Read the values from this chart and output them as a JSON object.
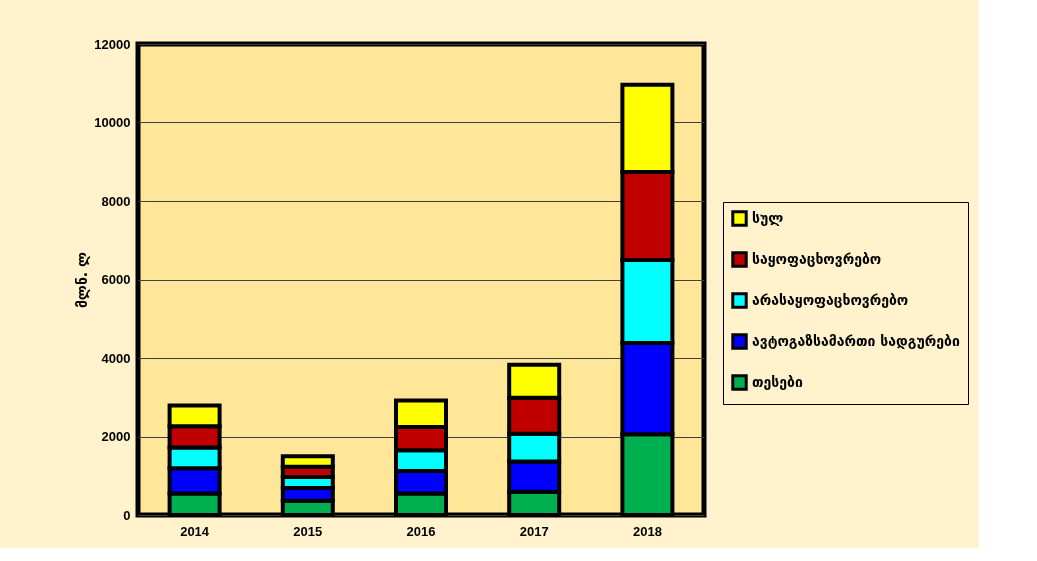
{
  "chart_data": {
    "type": "bar",
    "stacked": true,
    "ylabel": "მლნ. ლ",
    "categories": [
      "2014",
      "2015",
      "2016",
      "2017",
      "2018"
    ],
    "series": [
      {
        "name": "თესები",
        "color": "#00b050",
        "values": [
          550,
          360,
          550,
          590,
          2060
        ]
      },
      {
        "name": "ავტოგაზსამართი სადგურები",
        "color": "#0000ff",
        "values": [
          640,
          330,
          570,
          770,
          2320
        ]
      },
      {
        "name": "არასაყოფაცხოვრებო",
        "color": "#00ffff",
        "values": [
          530,
          280,
          530,
          710,
          2120
        ]
      },
      {
        "name": "საყოფაცხოვრებო",
        "color": "#c00000",
        "values": [
          540,
          260,
          590,
          920,
          2240
        ]
      },
      {
        "name": "სულ",
        "color": "#ffff00",
        "values": [
          530,
          270,
          680,
          840,
          2220
        ]
      }
    ],
    "ylim": [
      0,
      12000
    ],
    "yticks": [
      0,
      2000,
      4000,
      6000,
      8000,
      10000,
      12000
    ],
    "grid": "y",
    "legend": "right"
  }
}
